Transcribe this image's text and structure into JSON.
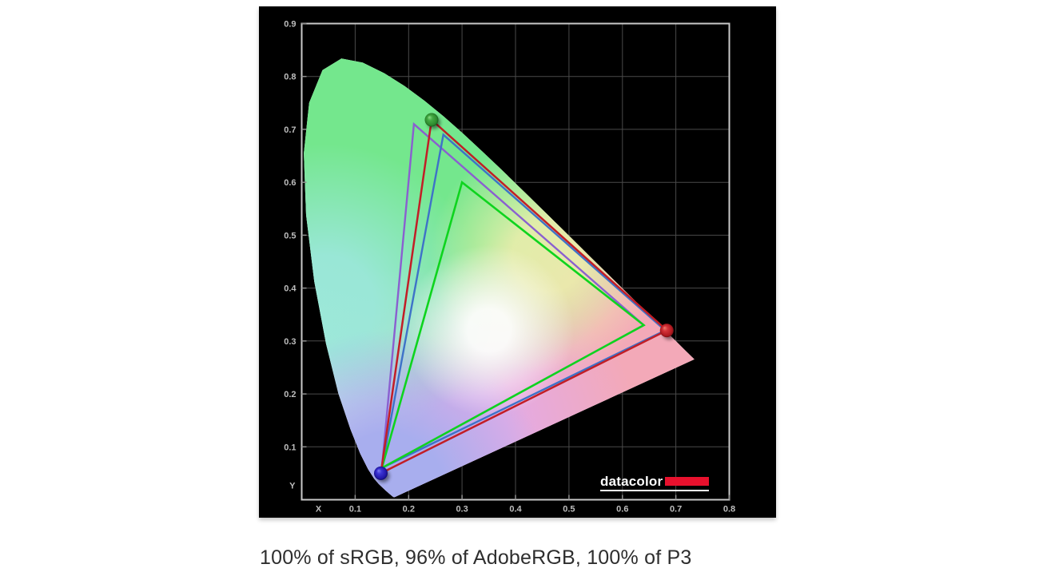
{
  "caption": "100% of sRGB, 96% of AdobeRGB, 100% of P3",
  "panel": {
    "background": "#000000",
    "border_color": "#c9c9c9",
    "grid_color": "#4a4a4a",
    "tick_color": "#8f8f8f",
    "label_color": "#bdbdbd"
  },
  "axes": {
    "x_label": "X",
    "y_label": "Y",
    "x_ticks": [
      "0.1",
      "0.2",
      "0.3",
      "0.4",
      "0.5",
      "0.6",
      "0.7",
      "0.8"
    ],
    "y_ticks": [
      "0.1",
      "0.2",
      "0.3",
      "0.4",
      "0.5",
      "0.6",
      "0.7",
      "0.8",
      "0.9"
    ],
    "x_max": 0.8,
    "y_max": 0.9
  },
  "logo": {
    "text": "datacolor",
    "text_color": "#ffffff",
    "bar_color": "#e8112d"
  },
  "chart_data": {
    "type": "chromaticity-gamut",
    "title": "CIE 1931 xy chromaticity diagram with gamut overlays",
    "coverage": {
      "sRGB": "100%",
      "AdobeRGB": "96%",
      "P3": "100%"
    },
    "spectral_locus": [
      [
        0.1741,
        0.005
      ],
      [
        0.174,
        0.0049
      ],
      [
        0.1738,
        0.0049
      ],
      [
        0.1736,
        0.0049
      ],
      [
        0.1733,
        0.0048
      ],
      [
        0.1726,
        0.0048
      ],
      [
        0.1714,
        0.0051
      ],
      [
        0.1689,
        0.0069
      ],
      [
        0.1644,
        0.0109
      ],
      [
        0.1566,
        0.0177
      ],
      [
        0.144,
        0.0297
      ],
      [
        0.1355,
        0.0399
      ],
      [
        0.1241,
        0.0578
      ],
      [
        0.1096,
        0.0868
      ],
      [
        0.0913,
        0.1327
      ],
      [
        0.0687,
        0.2007
      ],
      [
        0.0454,
        0.295
      ],
      [
        0.0235,
        0.4127
      ],
      [
        0.0082,
        0.5384
      ],
      [
        0.0039,
        0.6548
      ],
      [
        0.0139,
        0.7502
      ],
      [
        0.0389,
        0.812
      ],
      [
        0.0743,
        0.8338
      ],
      [
        0.1142,
        0.8262
      ],
      [
        0.1547,
        0.8059
      ],
      [
        0.1929,
        0.7816
      ],
      [
        0.2296,
        0.7543
      ],
      [
        0.2658,
        0.7243
      ],
      [
        0.3016,
        0.6923
      ],
      [
        0.3373,
        0.6589
      ],
      [
        0.3731,
        0.6245
      ],
      [
        0.4087,
        0.5896
      ],
      [
        0.4441,
        0.5547
      ],
      [
        0.4788,
        0.5202
      ],
      [
        0.5125,
        0.4866
      ],
      [
        0.5448,
        0.4544
      ],
      [
        0.5752,
        0.4242
      ],
      [
        0.6029,
        0.3965
      ],
      [
        0.627,
        0.3725
      ],
      [
        0.6482,
        0.3514
      ],
      [
        0.6658,
        0.334
      ],
      [
        0.6801,
        0.3197
      ],
      [
        0.6915,
        0.3083
      ],
      [
        0.7006,
        0.2993
      ],
      [
        0.7079,
        0.292
      ],
      [
        0.714,
        0.2859
      ],
      [
        0.719,
        0.2809
      ],
      [
        0.723,
        0.277
      ],
      [
        0.726,
        0.274
      ],
      [
        0.7283,
        0.2717
      ],
      [
        0.73,
        0.27
      ],
      [
        0.7311,
        0.2689
      ],
      [
        0.732,
        0.268
      ],
      [
        0.7334,
        0.2666
      ],
      [
        0.7347,
        0.2653
      ]
    ],
    "fill_layers": [
      {
        "name": "salmon",
        "cx": 0.63,
        "cy": 0.29,
        "r": 0.52,
        "solid": 0.5,
        "color": "#f3a9b8",
        "opacity": 1
      },
      {
        "name": "magenta",
        "cx": 0.3,
        "cy": 0.12,
        "r": 0.33,
        "solid": 0.25,
        "color": "#e3abe6",
        "opacity": 1
      },
      {
        "name": "green",
        "cx": 0.17,
        "cy": 0.75,
        "r": 0.57,
        "solid": 0.55,
        "color": "#74e78d",
        "opacity": 1
      },
      {
        "name": "cyan",
        "cx": 0.045,
        "cy": 0.37,
        "r": 0.3,
        "solid": 0.3,
        "color": "#9be7da",
        "opacity": 0.95
      },
      {
        "name": "periwinkle",
        "cx": 0.16,
        "cy": 0.02,
        "r": 0.3,
        "solid": 0.35,
        "color": "#a8aeee",
        "opacity": 1
      },
      {
        "name": "yellow",
        "cx": 0.46,
        "cy": 0.46,
        "r": 0.22,
        "solid": 0.3,
        "color": "#f1efad",
        "opacity": 0.85
      },
      {
        "name": "white-point",
        "cx": 0.35,
        "cy": 0.32,
        "r": 0.16,
        "solid": 0.25,
        "color": "#ffffff",
        "opacity": 0.9
      }
    ],
    "gamuts": [
      {
        "name": "AdobeRGB",
        "color": "#8a5fd0",
        "width": 2.4,
        "points": [
          [
            0.64,
            0.33
          ],
          [
            0.21,
            0.71
          ],
          [
            0.15,
            0.06
          ]
        ]
      },
      {
        "name": "P3",
        "color": "#3e72c8",
        "width": 2.4,
        "points": [
          [
            0.68,
            0.32
          ],
          [
            0.265,
            0.69
          ],
          [
            0.15,
            0.06
          ]
        ]
      },
      {
        "name": "sRGB",
        "color": "#0ed41e",
        "width": 2.6,
        "points": [
          [
            0.64,
            0.33
          ],
          [
            0.3,
            0.6
          ],
          [
            0.15,
            0.06
          ]
        ]
      },
      {
        "name": "Display",
        "color": "#c21e26",
        "width": 2.5,
        "points": [
          [
            0.683,
            0.32
          ],
          [
            0.243,
            0.718
          ],
          [
            0.148,
            0.05
          ]
        ]
      }
    ],
    "primaries": [
      {
        "name": "green-primary",
        "xy": [
          0.243,
          0.718
        ],
        "stops": [
          "#8fe08a",
          "#44aa44",
          "#2d8a2d",
          "#14541a"
        ]
      },
      {
        "name": "red-primary",
        "xy": [
          0.683,
          0.32
        ],
        "stops": [
          "#f08070",
          "#d4333a",
          "#b01a20",
          "#6e0d12"
        ]
      },
      {
        "name": "blue-primary",
        "xy": [
          0.148,
          0.05
        ],
        "stops": [
          "#7d7df0",
          "#3c34d4",
          "#2218a8",
          "#0c0860"
        ]
      }
    ]
  }
}
